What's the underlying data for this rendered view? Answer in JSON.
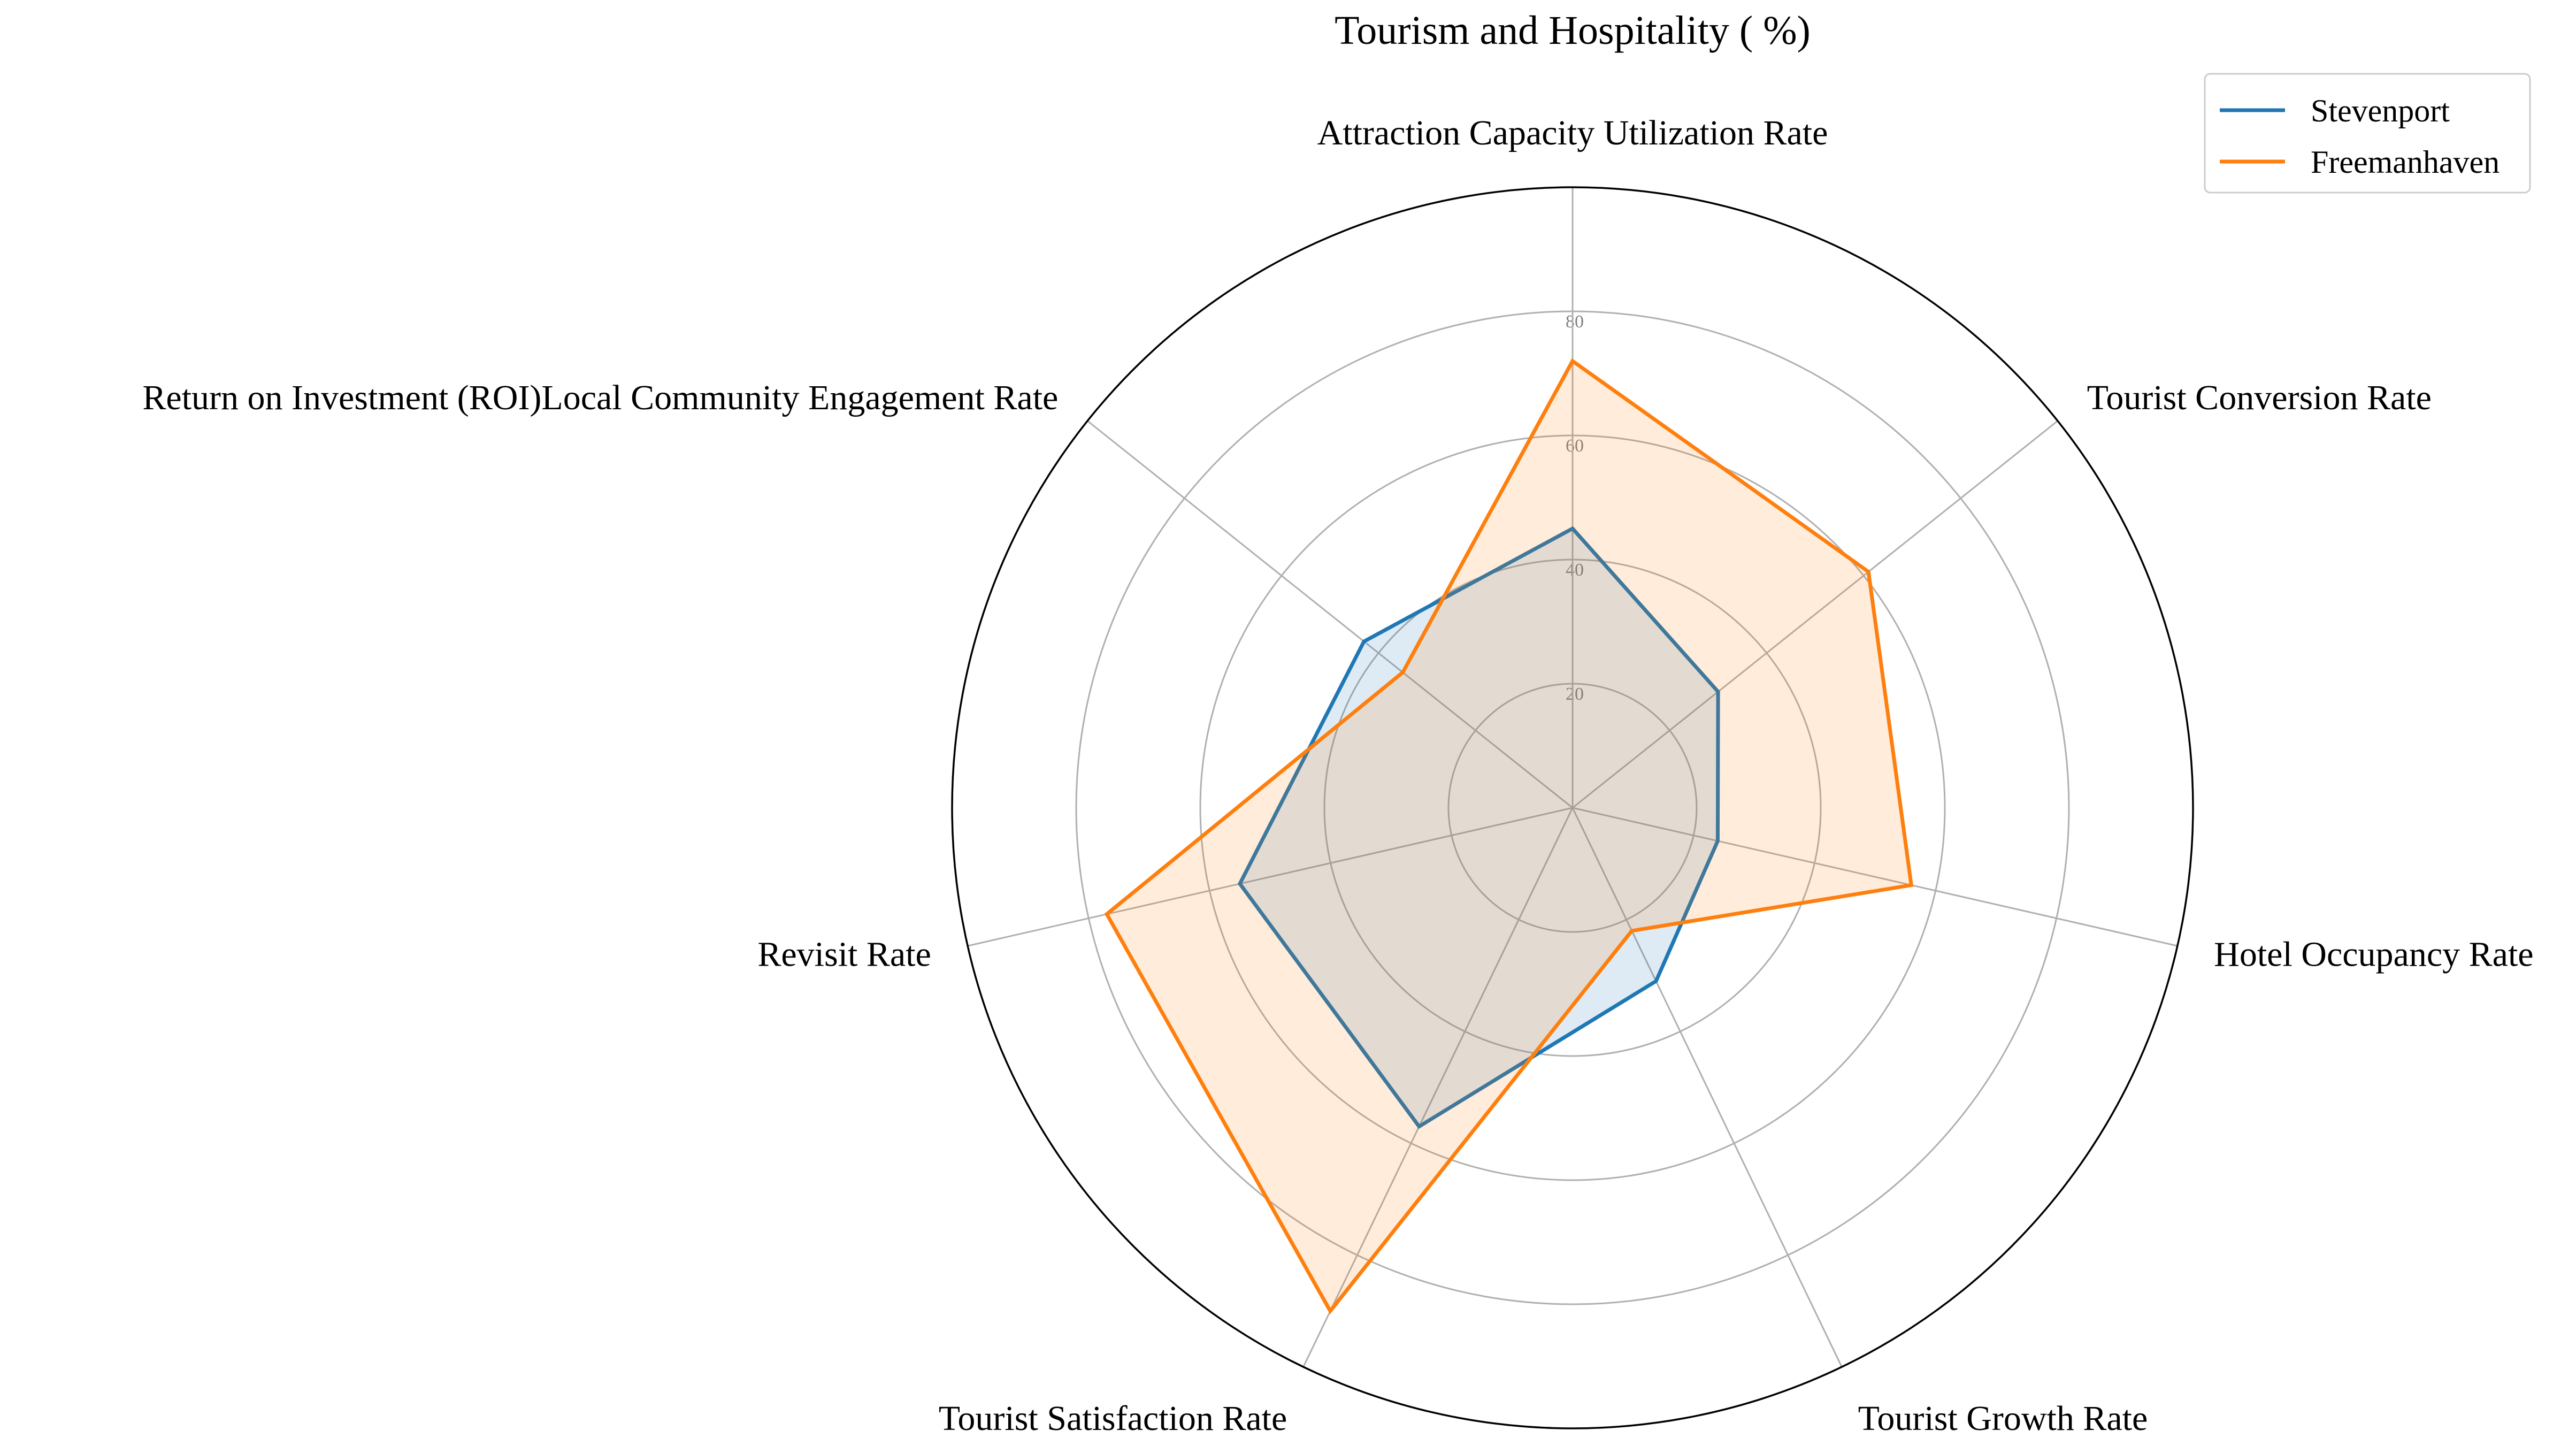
{
  "chart_data": {
    "type": "radar",
    "title": "Tourism and Hospitality ( %)",
    "axes": [
      "Attraction Capacity Utilization Rate",
      "Tourist Conversion Rate",
      "Hotel Occupancy Rate",
      "Tourist Growth Rate",
      "Tourist Satisfaction Rate",
      "Revisit Rate",
      "Return on Investment (ROI)Local Community Engagement Rate"
    ],
    "radial_ticks": [
      20,
      40,
      60,
      80
    ],
    "rlim": [
      0,
      100
    ],
    "grid": true,
    "legend_position": "top-right",
    "series": [
      {
        "name": "Stevenport",
        "color": "#1f77b4",
        "values": [
          45,
          30,
          24,
          31,
          57,
          55,
          43
        ]
      },
      {
        "name": "Freemanhaven",
        "color": "#ff7f0e",
        "values": [
          72,
          61,
          56,
          22,
          90,
          77,
          35
        ]
      }
    ]
  }
}
